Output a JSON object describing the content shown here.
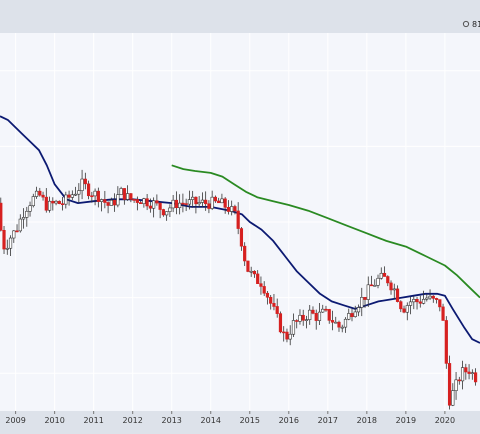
{
  "header": {
    "label": "81"
  },
  "colors": {
    "frame": "#dde2ea",
    "plot_bg": "#f4f6fb",
    "grid": "#ffffff",
    "up": "#ffffff",
    "down": "#d62020",
    "wick": "#333333",
    "ma_short": "#0c1a72",
    "ma_long": "#2a8a22"
  },
  "chart_data": {
    "type": "candlestick",
    "title": "",
    "x_tick_labels": [
      "2009",
      "2010",
      "2011",
      "2012",
      "2013",
      "2014",
      "2015",
      "2016",
      "2017",
      "2018",
      "2019",
      "2020"
    ],
    "x_range": [
      2008.6,
      2020.9
    ],
    "y_range": [
      0,
      100
    ],
    "y_axis": "unlabeled price scale (relative units)",
    "grid": true,
    "legend": "none",
    "price_path": [
      [
        2008.62,
        55
      ],
      [
        2008.7,
        48
      ],
      [
        2008.8,
        43
      ],
      [
        2008.95,
        46
      ],
      [
        2009.1,
        48
      ],
      [
        2009.3,
        53
      ],
      [
        2009.5,
        56
      ],
      [
        2009.7,
        57
      ],
      [
        2009.9,
        54
      ],
      [
        2010.1,
        55
      ],
      [
        2010.3,
        55
      ],
      [
        2010.5,
        57
      ],
      [
        2010.8,
        60
      ],
      [
        2011.0,
        58
      ],
      [
        2011.2,
        57
      ],
      [
        2011.5,
        54
      ],
      [
        2011.8,
        58
      ],
      [
        2012.0,
        56
      ],
      [
        2012.3,
        56
      ],
      [
        2012.6,
        55
      ],
      [
        2012.9,
        53
      ],
      [
        2013.2,
        55
      ],
      [
        2013.5,
        55
      ],
      [
        2013.8,
        55
      ],
      [
        2014.0,
        55
      ],
      [
        2014.3,
        55
      ],
      [
        2014.5,
        54
      ],
      [
        2014.7,
        52
      ],
      [
        2014.85,
        46
      ],
      [
        2015.0,
        38
      ],
      [
        2015.2,
        35
      ],
      [
        2015.4,
        34
      ],
      [
        2015.6,
        29
      ],
      [
        2015.8,
        24
      ],
      [
        2016.0,
        19
      ],
      [
        2016.2,
        23
      ],
      [
        2016.4,
        24
      ],
      [
        2016.6,
        26
      ],
      [
        2016.8,
        25
      ],
      [
        2017.0,
        26
      ],
      [
        2017.2,
        24
      ],
      [
        2017.4,
        22
      ],
      [
        2017.6,
        25
      ],
      [
        2017.8,
        28
      ],
      [
        2018.0,
        30
      ],
      [
        2018.2,
        33
      ],
      [
        2018.4,
        35
      ],
      [
        2018.6,
        35
      ],
      [
        2018.8,
        32
      ],
      [
        2019.0,
        27
      ],
      [
        2019.2,
        29
      ],
      [
        2019.4,
        29
      ],
      [
        2019.6,
        30
      ],
      [
        2019.8,
        29
      ],
      [
        2020.0,
        28
      ],
      [
        2020.1,
        15
      ],
      [
        2020.2,
        3
      ],
      [
        2020.3,
        5
      ],
      [
        2020.5,
        10
      ],
      [
        2020.7,
        11
      ],
      [
        2020.85,
        9
      ]
    ],
    "series": [
      {
        "type": "line",
        "color": "#0c1a72",
        "points": [
          [
            2008.6,
            78
          ],
          [
            2008.8,
            77
          ],
          [
            2009.0,
            75
          ],
          [
            2009.2,
            73
          ],
          [
            2009.4,
            71
          ],
          [
            2009.6,
            69
          ],
          [
            2009.8,
            65
          ],
          [
            2010.0,
            60
          ],
          [
            2010.3,
            56
          ],
          [
            2010.6,
            55
          ],
          [
            2011.0,
            55.5
          ],
          [
            2011.5,
            56
          ],
          [
            2012.0,
            56
          ],
          [
            2012.5,
            55.5
          ],
          [
            2013.0,
            55
          ],
          [
            2013.5,
            54
          ],
          [
            2014.0,
            54
          ],
          [
            2014.5,
            53
          ],
          [
            2014.8,
            52
          ],
          [
            2015.0,
            50
          ],
          [
            2015.3,
            48
          ],
          [
            2015.6,
            45
          ],
          [
            2015.9,
            41
          ],
          [
            2016.2,
            37
          ],
          [
            2016.5,
            34
          ],
          [
            2016.8,
            31
          ],
          [
            2017.1,
            29
          ],
          [
            2017.4,
            28
          ],
          [
            2017.7,
            27
          ],
          [
            2018.0,
            28
          ],
          [
            2018.3,
            29
          ],
          [
            2018.6,
            29.5
          ],
          [
            2018.9,
            30
          ],
          [
            2019.2,
            30.5
          ],
          [
            2019.5,
            31
          ],
          [
            2019.8,
            31
          ],
          [
            2020.0,
            30.5
          ],
          [
            2020.2,
            27
          ],
          [
            2020.5,
            22
          ],
          [
            2020.7,
            19
          ],
          [
            2020.9,
            18
          ]
        ]
      },
      {
        "type": "line",
        "color": "#2a8a22",
        "points": [
          [
            2013.0,
            65
          ],
          [
            2013.3,
            64
          ],
          [
            2013.6,
            63.5
          ],
          [
            2014.0,
            63
          ],
          [
            2014.3,
            62
          ],
          [
            2014.6,
            60
          ],
          [
            2014.9,
            58
          ],
          [
            2015.2,
            56.5
          ],
          [
            2015.6,
            55.5
          ],
          [
            2016.0,
            54.5
          ],
          [
            2016.5,
            53
          ],
          [
            2017.0,
            51
          ],
          [
            2017.5,
            49
          ],
          [
            2018.0,
            47
          ],
          [
            2018.5,
            45
          ],
          [
            2019.0,
            43.5
          ],
          [
            2019.5,
            41
          ],
          [
            2020.0,
            38.5
          ],
          [
            2020.3,
            36
          ],
          [
            2020.6,
            33
          ],
          [
            2020.9,
            30
          ]
        ]
      }
    ]
  }
}
